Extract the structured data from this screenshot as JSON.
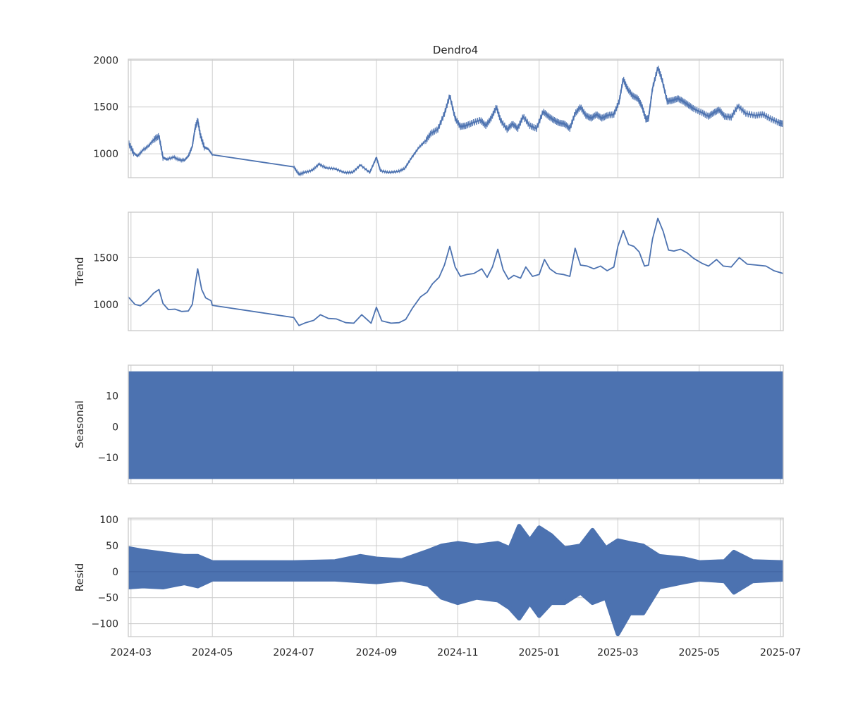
{
  "chart_data": {
    "type": "line",
    "title": "Dendro4",
    "x_ticks": [
      "2024-03",
      "2024-05",
      "2024-07",
      "2024-09",
      "2024-11",
      "2025-01",
      "2025-03",
      "2025-05",
      "2025-07"
    ],
    "x_range": [
      "2024-02-28",
      "2025-07-03"
    ],
    "grid": true,
    "color": "#4c72b0",
    "panels": [
      {
        "id": "observed",
        "ylabel": "",
        "ylim": [
          745,
          2010
        ],
        "y_ticks": [
          1000,
          1500,
          2000
        ],
        "points": [
          [
            "2024-02-28",
            1120
          ],
          [
            "2024-03-03",
            1010
          ],
          [
            "2024-03-06",
            975
          ],
          [
            "2024-03-10",
            1040
          ],
          [
            "2024-03-14",
            1080
          ],
          [
            "2024-03-18",
            1150
          ],
          [
            "2024-03-22",
            1190
          ],
          [
            "2024-03-25",
            960
          ],
          [
            "2024-03-28",
            940
          ],
          [
            "2024-04-02",
            965
          ],
          [
            "2024-04-06",
            935
          ],
          [
            "2024-04-10",
            930
          ],
          [
            "2024-04-13",
            975
          ],
          [
            "2024-04-16",
            1080
          ],
          [
            "2024-04-18",
            1270
          ],
          [
            "2024-04-20",
            1360
          ],
          [
            "2024-04-22",
            1200
          ],
          [
            "2024-04-25",
            1070
          ],
          [
            "2024-04-28",
            1050
          ],
          [
            "2024-05-01",
            990
          ],
          [
            "2024-07-01",
            860
          ],
          [
            "2024-07-05",
            780
          ],
          [
            "2024-07-09",
            800
          ],
          [
            "2024-07-15",
            825
          ],
          [
            "2024-07-20",
            890
          ],
          [
            "2024-07-25",
            850
          ],
          [
            "2024-08-01",
            840
          ],
          [
            "2024-08-08",
            800
          ],
          [
            "2024-08-14",
            800
          ],
          [
            "2024-08-20",
            880
          ],
          [
            "2024-08-27",
            800
          ],
          [
            "2024-09-01",
            960
          ],
          [
            "2024-09-04",
            820
          ],
          [
            "2024-09-10",
            800
          ],
          [
            "2024-09-17",
            810
          ],
          [
            "2024-09-22",
            840
          ],
          [
            "2024-09-27",
            950
          ],
          [
            "2024-10-03",
            1070
          ],
          [
            "2024-10-08",
            1140
          ],
          [
            "2024-10-12",
            1220
          ],
          [
            "2024-10-17",
            1260
          ],
          [
            "2024-10-22",
            1430
          ],
          [
            "2024-10-26",
            1620
          ],
          [
            "2024-10-30",
            1380
          ],
          [
            "2024-11-03",
            1290
          ],
          [
            "2024-11-07",
            1300
          ],
          [
            "2024-11-12",
            1330
          ],
          [
            "2024-11-18",
            1360
          ],
          [
            "2024-11-22",
            1300
          ],
          [
            "2024-11-26",
            1380
          ],
          [
            "2024-11-30",
            1500
          ],
          [
            "2024-12-03",
            1360
          ],
          [
            "2024-12-08",
            1260
          ],
          [
            "2024-12-12",
            1320
          ],
          [
            "2024-12-16",
            1270
          ],
          [
            "2024-12-20",
            1400
          ],
          [
            "2024-12-25",
            1300
          ],
          [
            "2024-12-30",
            1270
          ],
          [
            "2025-01-04",
            1450
          ],
          [
            "2025-01-08",
            1400
          ],
          [
            "2025-01-12",
            1360
          ],
          [
            "2025-01-16",
            1330
          ],
          [
            "2025-01-20",
            1320
          ],
          [
            "2025-01-24",
            1270
          ],
          [
            "2025-01-28",
            1430
          ],
          [
            "2025-02-01",
            1500
          ],
          [
            "2025-02-05",
            1410
          ],
          [
            "2025-02-09",
            1380
          ],
          [
            "2025-02-13",
            1420
          ],
          [
            "2025-02-17",
            1380
          ],
          [
            "2025-02-21",
            1410
          ],
          [
            "2025-02-26",
            1420
          ],
          [
            "2025-03-02",
            1560
          ],
          [
            "2025-03-05",
            1800
          ],
          [
            "2025-03-08",
            1700
          ],
          [
            "2025-03-12",
            1620
          ],
          [
            "2025-03-16",
            1590
          ],
          [
            "2025-03-19",
            1510
          ],
          [
            "2025-03-22",
            1370
          ],
          [
            "2025-03-24",
            1380
          ],
          [
            "2025-03-27",
            1700
          ],
          [
            "2025-03-31",
            1920
          ],
          [
            "2025-04-03",
            1800
          ],
          [
            "2025-04-07",
            1560
          ],
          [
            "2025-04-11",
            1570
          ],
          [
            "2025-04-15",
            1590
          ],
          [
            "2025-04-19",
            1560
          ],
          [
            "2025-04-23",
            1520
          ],
          [
            "2025-04-27",
            1480
          ],
          [
            "2025-05-03",
            1440
          ],
          [
            "2025-05-08",
            1400
          ],
          [
            "2025-05-12",
            1440
          ],
          [
            "2025-05-16",
            1470
          ],
          [
            "2025-05-20",
            1400
          ],
          [
            "2025-05-25",
            1390
          ],
          [
            "2025-05-30",
            1510
          ],
          [
            "2025-06-05",
            1430
          ],
          [
            "2025-06-12",
            1410
          ],
          [
            "2025-06-18",
            1420
          ],
          [
            "2025-06-24",
            1370
          ],
          [
            "2025-06-30",
            1330
          ],
          [
            "2025-07-03",
            1320
          ]
        ]
      },
      {
        "id": "trend",
        "ylabel": "Trend",
        "ylim": [
          720,
          1985
        ],
        "y_ticks": [
          1000,
          1500
        ],
        "points": [
          [
            "2024-02-28",
            1080
          ],
          [
            "2024-03-04",
            1000
          ],
          [
            "2024-03-08",
            985
          ],
          [
            "2024-03-13",
            1040
          ],
          [
            "2024-03-18",
            1120
          ],
          [
            "2024-03-22",
            1160
          ],
          [
            "2024-03-25",
            1010
          ],
          [
            "2024-03-29",
            945
          ],
          [
            "2024-04-03",
            950
          ],
          [
            "2024-04-08",
            925
          ],
          [
            "2024-04-13",
            930
          ],
          [
            "2024-04-16",
            1000
          ],
          [
            "2024-04-18",
            1200
          ],
          [
            "2024-04-20",
            1380
          ],
          [
            "2024-04-23",
            1160
          ],
          [
            "2024-04-26",
            1070
          ],
          [
            "2024-04-30",
            1040
          ],
          [
            "2024-05-01",
            990
          ],
          [
            "2024-07-01",
            860
          ],
          [
            "2024-07-05",
            775
          ],
          [
            "2024-07-10",
            805
          ],
          [
            "2024-07-16",
            830
          ],
          [
            "2024-07-21",
            890
          ],
          [
            "2024-07-27",
            850
          ],
          [
            "2024-08-02",
            845
          ],
          [
            "2024-08-09",
            805
          ],
          [
            "2024-08-15",
            800
          ],
          [
            "2024-08-21",
            890
          ],
          [
            "2024-08-28",
            800
          ],
          [
            "2024-09-01",
            970
          ],
          [
            "2024-09-05",
            825
          ],
          [
            "2024-09-12",
            800
          ],
          [
            "2024-09-18",
            805
          ],
          [
            "2024-09-23",
            840
          ],
          [
            "2024-09-28",
            960
          ],
          [
            "2024-10-04",
            1080
          ],
          [
            "2024-10-09",
            1130
          ],
          [
            "2024-10-13",
            1220
          ],
          [
            "2024-10-18",
            1290
          ],
          [
            "2024-10-22",
            1420
          ],
          [
            "2024-10-26",
            1620
          ],
          [
            "2024-10-30",
            1400
          ],
          [
            "2024-11-03",
            1300
          ],
          [
            "2024-11-08",
            1320
          ],
          [
            "2024-11-13",
            1330
          ],
          [
            "2024-11-19",
            1380
          ],
          [
            "2024-11-23",
            1290
          ],
          [
            "2024-11-27",
            1400
          ],
          [
            "2024-12-01",
            1590
          ],
          [
            "2024-12-05",
            1370
          ],
          [
            "2024-12-09",
            1270
          ],
          [
            "2024-12-13",
            1310
          ],
          [
            "2024-12-18",
            1280
          ],
          [
            "2024-12-22",
            1400
          ],
          [
            "2024-12-27",
            1300
          ],
          [
            "2025-01-01",
            1320
          ],
          [
            "2025-01-05",
            1480
          ],
          [
            "2025-01-09",
            1380
          ],
          [
            "2025-01-14",
            1330
          ],
          [
            "2025-01-19",
            1320
          ],
          [
            "2025-01-24",
            1300
          ],
          [
            "2025-01-28",
            1600
          ],
          [
            "2025-02-01",
            1420
          ],
          [
            "2025-02-06",
            1410
          ],
          [
            "2025-02-11",
            1380
          ],
          [
            "2025-02-16",
            1410
          ],
          [
            "2025-02-21",
            1360
          ],
          [
            "2025-02-26",
            1400
          ],
          [
            "2025-03-01",
            1620
          ],
          [
            "2025-03-05",
            1790
          ],
          [
            "2025-03-09",
            1640
          ],
          [
            "2025-03-13",
            1620
          ],
          [
            "2025-03-17",
            1560
          ],
          [
            "2025-03-21",
            1410
          ],
          [
            "2025-03-24",
            1420
          ],
          [
            "2025-03-27",
            1700
          ],
          [
            "2025-03-31",
            1920
          ],
          [
            "2025-04-04",
            1780
          ],
          [
            "2025-04-08",
            1580
          ],
          [
            "2025-04-12",
            1570
          ],
          [
            "2025-04-17",
            1590
          ],
          [
            "2025-04-22",
            1550
          ],
          [
            "2025-04-27",
            1490
          ],
          [
            "2025-05-03",
            1440
          ],
          [
            "2025-05-08",
            1410
          ],
          [
            "2025-05-14",
            1480
          ],
          [
            "2025-05-19",
            1410
          ],
          [
            "2025-05-25",
            1400
          ],
          [
            "2025-05-31",
            1500
          ],
          [
            "2025-06-06",
            1430
          ],
          [
            "2025-06-13",
            1420
          ],
          [
            "2025-06-20",
            1410
          ],
          [
            "2025-06-26",
            1360
          ],
          [
            "2025-07-03",
            1330
          ]
        ]
      },
      {
        "id": "seasonal",
        "ylabel": "Seasonal",
        "ylim": [
          -18.5,
          20
        ],
        "y_ticks": [
          -10,
          0,
          10
        ],
        "band": [
          -17,
          18
        ]
      },
      {
        "id": "resid",
        "ylabel": "Resid",
        "ylim": [
          -125,
          103
        ],
        "y_ticks": [
          -100,
          -50,
          0,
          50,
          100
        ],
        "envelope": [
          [
            "2024-02-28",
            45,
            -30
          ],
          [
            "2024-03-10",
            40,
            -28
          ],
          [
            "2024-03-25",
            35,
            -30
          ],
          [
            "2024-04-10",
            30,
            -22
          ],
          [
            "2024-04-20",
            30,
            -28
          ],
          [
            "2024-05-01",
            18,
            -15
          ],
          [
            "2024-06-01",
            18,
            -15
          ],
          [
            "2024-07-01",
            18,
            -15
          ],
          [
            "2024-08-01",
            20,
            -15
          ],
          [
            "2024-08-20",
            30,
            -18
          ],
          [
            "2024-09-01",
            25,
            -20
          ],
          [
            "2024-09-20",
            22,
            -15
          ],
          [
            "2024-10-10",
            40,
            -25
          ],
          [
            "2024-10-20",
            50,
            -50
          ],
          [
            "2024-11-01",
            55,
            -60
          ],
          [
            "2024-11-15",
            50,
            -50
          ],
          [
            "2024-12-01",
            55,
            -55
          ],
          [
            "2024-12-10",
            45,
            -70
          ],
          [
            "2024-12-17",
            88,
            -90
          ],
          [
            "2024-12-25",
            60,
            -60
          ],
          [
            "2025-01-01",
            85,
            -85
          ],
          [
            "2025-01-10",
            70,
            -60
          ],
          [
            "2025-01-20",
            45,
            -60
          ],
          [
            "2025-02-01",
            50,
            -40
          ],
          [
            "2025-02-10",
            80,
            -60
          ],
          [
            "2025-02-20",
            45,
            -50
          ],
          [
            "2025-03-01",
            60,
            -120
          ],
          [
            "2025-03-10",
            55,
            -80
          ],
          [
            "2025-03-20",
            50,
            -80
          ],
          [
            "2025-04-01",
            30,
            -30
          ],
          [
            "2025-04-20",
            25,
            -20
          ],
          [
            "2025-05-01",
            18,
            -15
          ],
          [
            "2025-05-20",
            20,
            -18
          ],
          [
            "2025-05-27",
            38,
            -40
          ],
          [
            "2025-06-10",
            20,
            -18
          ],
          [
            "2025-07-03",
            18,
            -15
          ]
        ]
      }
    ]
  }
}
